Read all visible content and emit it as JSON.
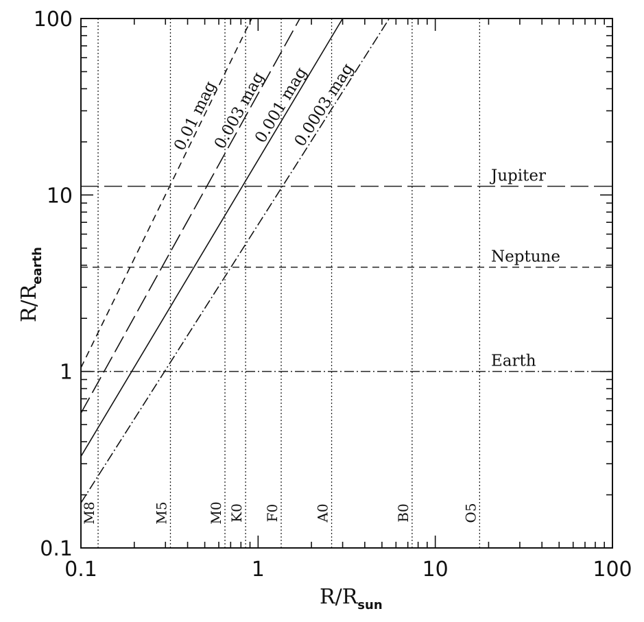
{
  "chart_data": {
    "type": "line",
    "xscale": "log",
    "yscale": "log",
    "xlim": [
      0.1,
      100
    ],
    "ylim": [
      0.1,
      100
    ],
    "xlabel": {
      "main": "R/R",
      "sub": "sun"
    },
    "ylabel": {
      "main": "R/R",
      "sub": "earth"
    },
    "x_tick_labels": [
      {
        "value": 0.1,
        "label": "0.1"
      },
      {
        "value": 1,
        "label": "1"
      },
      {
        "value": 10,
        "label": "10"
      },
      {
        "value": 100,
        "label": "100"
      }
    ],
    "y_tick_labels": [
      {
        "value": 0.1,
        "label": "0.1"
      },
      {
        "value": 1,
        "label": "1"
      },
      {
        "value": 10,
        "label": "10"
      },
      {
        "value": 100,
        "label": "100"
      }
    ],
    "series": [
      {
        "name": "0.01 mag",
        "dash": "10,7",
        "points": [
          [
            0.1,
            1.05
          ],
          [
            0.92,
            100
          ]
        ]
      },
      {
        "name": "0.003 mag",
        "dash": "26,8",
        "points": [
          [
            0.1,
            0.58
          ],
          [
            1.72,
            100
          ]
        ]
      },
      {
        "name": "0.001 mag",
        "dash": "",
        "points": [
          [
            0.1,
            0.33
          ],
          [
            3.0,
            100
          ]
        ]
      },
      {
        "name": "0.0003 mag",
        "dash": "14,4,2,4",
        "points": [
          [
            0.1,
            0.18
          ],
          [
            5.5,
            100
          ]
        ]
      }
    ],
    "planet_lines": [
      {
        "label": "Jupiter",
        "y": 11.2,
        "dash": "26,8"
      },
      {
        "label": "Neptune",
        "y": 3.9,
        "dash": "10,7"
      },
      {
        "label": "Earth",
        "y": 1.0,
        "dash": "14,4,2,4"
      }
    ],
    "spectral_types": [
      {
        "label": "M8",
        "x": 0.125
      },
      {
        "label": "M5",
        "x": 0.32
      },
      {
        "label": "M0",
        "x": 0.65
      },
      {
        "label": "K0",
        "x": 0.85
      },
      {
        "label": "F0",
        "x": 1.35
      },
      {
        "label": "A0",
        "x": 2.6
      },
      {
        "label": "B0",
        "x": 7.4
      },
      {
        "label": "O5",
        "x": 17.8
      }
    ]
  }
}
